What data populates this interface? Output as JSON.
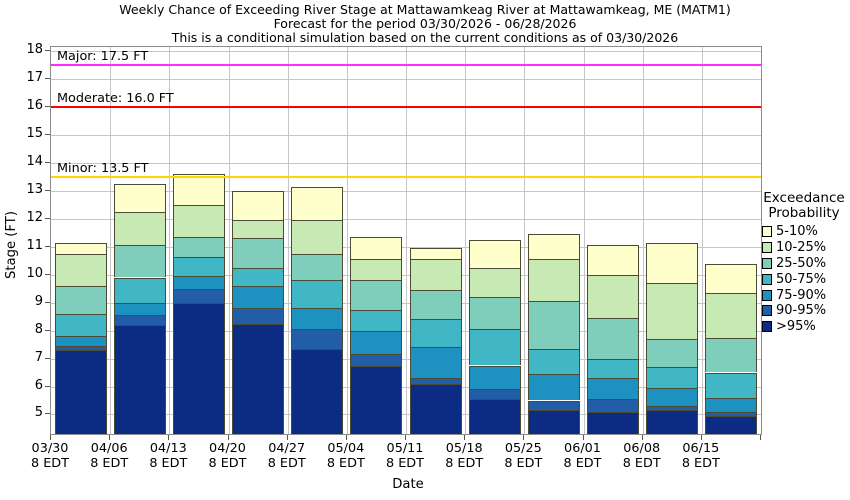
{
  "chart_data": {
    "type": "bar",
    "stacked": true,
    "orientation": "vertical",
    "title": "Weekly Chance of Exceeding River Stage at Mattawamkeag River at Mattawamkeag, ME (MATM1)",
    "subtitle": "Forecast for the period 03/30/2026 - 06/28/2026",
    "note": "This is a conditional simulation based on the current conditions as of 03/30/2026",
    "xlabel": "Date",
    "ylabel": "Stage (FT)",
    "x_sublabel": "8 EDT",
    "ylim": [
      4.3,
      18.15
    ],
    "yticks": [
      5,
      6,
      7,
      8,
      9,
      10,
      11,
      12,
      13,
      14,
      15,
      16,
      17,
      18
    ],
    "grid": true,
    "legend_position": "right",
    "legend_title_lines": [
      "Exceedance",
      "Probability"
    ],
    "bands": [
      {
        "label": "5-10%",
        "color": "#ffffcc"
      },
      {
        "label": "10-25%",
        "color": "#c7e9b4"
      },
      {
        "label": "25-50%",
        "color": "#7fcdbb"
      },
      {
        "label": "50-75%",
        "color": "#41b6c4"
      },
      {
        "label": "75-90%",
        "color": "#1d91c0"
      },
      {
        "label": "90-95%",
        "color": "#225ea8"
      },
      {
        "label": ">95%",
        "color": "#0c2c84"
      }
    ],
    "base_stage_ft": 4.3,
    "weeks": [
      {
        "date": "03/30",
        "time": "8 EDT",
        "band_tops_ft": [
          11.15,
          10.75,
          9.6,
          8.6,
          7.8,
          7.45,
          7.3
        ]
      },
      {
        "date": "04/06",
        "time": "8 EDT",
        "band_tops_ft": [
          13.25,
          12.25,
          11.05,
          9.9,
          9.0,
          8.55,
          8.2
        ]
      },
      {
        "date": "04/13",
        "time": "8 EDT",
        "band_tops_ft": [
          13.6,
          12.5,
          11.35,
          10.65,
          9.95,
          9.5,
          9.0
        ]
      },
      {
        "date": "04/20",
        "time": "8 EDT",
        "band_tops_ft": [
          13.0,
          11.95,
          11.3,
          10.25,
          9.6,
          8.8,
          8.25
        ]
      },
      {
        "date": "04/27",
        "time": "8 EDT",
        "band_tops_ft": [
          13.15,
          11.95,
          10.75,
          9.8,
          8.8,
          8.05,
          7.35
        ]
      },
      {
        "date": "05/04",
        "time": "8 EDT",
        "band_tops_ft": [
          11.35,
          10.55,
          9.8,
          8.75,
          8.0,
          7.15,
          6.75
        ]
      },
      {
        "date": "05/11",
        "time": "8 EDT",
        "band_tops_ft": [
          10.95,
          10.55,
          9.45,
          8.4,
          7.4,
          6.3,
          6.1
        ]
      },
      {
        "date": "05/18",
        "time": "8 EDT",
        "band_tops_ft": [
          11.25,
          10.25,
          9.2,
          8.05,
          6.75,
          5.9,
          5.55
        ]
      },
      {
        "date": "05/25",
        "time": "8 EDT",
        "band_tops_ft": [
          11.45,
          10.55,
          9.05,
          7.35,
          6.45,
          5.5,
          5.15
        ]
      },
      {
        "date": "06/01",
        "time": "8 EDT",
        "band_tops_ft": [
          11.05,
          10.0,
          8.45,
          7.0,
          6.3,
          5.55,
          5.1
        ]
      },
      {
        "date": "06/08",
        "time": "8 EDT",
        "band_tops_ft": [
          11.15,
          9.7,
          7.7,
          6.7,
          5.95,
          5.3,
          5.15
        ]
      },
      {
        "date": "06/15",
        "time": "8 EDT",
        "band_tops_ft": [
          10.4,
          9.35,
          7.75,
          6.5,
          5.6,
          5.1,
          4.95
        ]
      }
    ],
    "flood_categories": [
      {
        "name": "Major",
        "stage_ft": 17.5,
        "label": "Major: 17.5 FT",
        "color": "#ff2dff"
      },
      {
        "name": "Moderate",
        "stage_ft": 16.0,
        "label": "Moderate: 16.0 FT",
        "color": "#ff0000"
      },
      {
        "name": "Minor",
        "stage_ft": 13.5,
        "label": "Minor: 13.5 FT",
        "color": "#ffd700"
      }
    ]
  }
}
